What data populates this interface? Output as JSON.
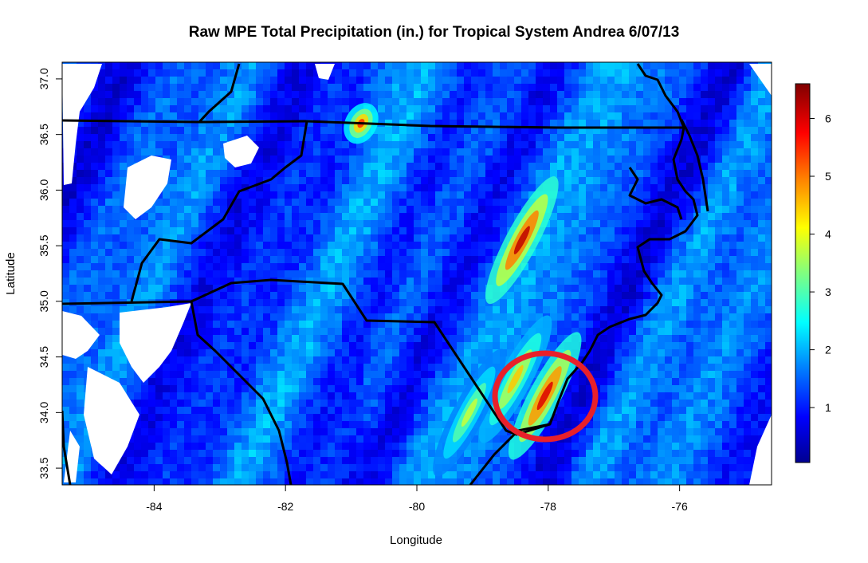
{
  "chart_data": {
    "type": "heatmap",
    "title": "Raw MPE Total Precipitation (in.) for Tropical System Andrea 6/07/13",
    "xlabel": "Longitude",
    "ylabel": "Latitude",
    "xlim": [
      -85.4,
      -74.6
    ],
    "ylim": [
      33.35,
      37.15
    ],
    "x_ticks": [
      -84,
      -82,
      -80,
      -78,
      -76
    ],
    "y_ticks": [
      33.5,
      34.0,
      34.5,
      35.0,
      35.5,
      36.0,
      36.5,
      37.0
    ],
    "y_tick_labels": [
      "33.5",
      "34.0",
      "34.5",
      "35.0",
      "35.5",
      "36.0",
      "36.5",
      "37.0"
    ],
    "colorbar": {
      "ticks": [
        1,
        2,
        3,
        4,
        5,
        6
      ],
      "min": 0.05,
      "max": 6.6,
      "colors": [
        "#00008f",
        "#0000ff",
        "#0080ff",
        "#00ffff",
        "#80ff80",
        "#ffff00",
        "#ff8000",
        "#ff0000",
        "#800000"
      ]
    },
    "rain_bands": [
      {
        "lon": -78.4,
        "lat": 35.55,
        "peak": 6.2
      },
      {
        "lon": -78.05,
        "lat": 34.15,
        "peak": 6.0
      },
      {
        "lon": -78.5,
        "lat": 34.3,
        "peak": 4.5
      },
      {
        "lon": -80.85,
        "lat": 36.6,
        "peak": 5.5
      },
      {
        "lon": -79.2,
        "lat": 34.0,
        "peak": 3.8
      }
    ],
    "annotation": {
      "shape": "ellipse",
      "center": [
        -78.05,
        34.15
      ],
      "color": "#e8202a"
    }
  },
  "colors": {
    "background": "#00008f",
    "state_lines": "#000000",
    "highlight_ring": "#e8202a"
  }
}
